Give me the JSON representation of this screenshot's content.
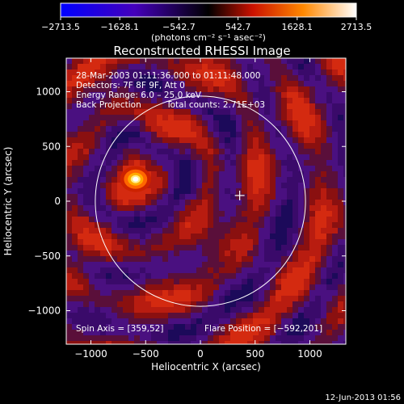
{
  "colorbar": {
    "tick_labels": [
      "−2713.5",
      "−1628.1",
      "−542.7",
      "542.7",
      "1628.1",
      "2713.5"
    ],
    "tick_values": [
      -2713.5,
      -1628.1,
      -542.7,
      542.7,
      1628.1,
      2713.5
    ],
    "range": [
      -2713.5,
      2713.5
    ],
    "unit_label": "(photons cm⁻² s⁻¹ asec⁻²)"
  },
  "footer": {
    "timestamp": "12-Jun-2013 01:56"
  },
  "chart_data": {
    "type": "heatmap",
    "title": "Reconstructed RHESSI Image",
    "xlabel": "Heliocentric X (arcsec)",
    "ylabel": "Heliocentric Y (arcsec)",
    "xlim": [
      -1300,
      1300
    ],
    "ylim": [
      -1300,
      1300
    ],
    "x_ticks": [
      -1000,
      -500,
      0,
      500,
      1000
    ],
    "y_ticks": [
      1000,
      500,
      0,
      -500,
      -1000
    ],
    "x_tick_labels": [
      "−1000",
      "−500",
      "0",
      "500",
      "1000"
    ],
    "y_tick_labels": [
      "1000",
      "500",
      "0",
      "−500",
      "−1000"
    ],
    "annotations": {
      "time_range": "28-Mar-2003 01:11:36.000 to 01:11:48.000",
      "detectors": "Detectors: 7F 8F 9F, Att 0",
      "energy_range": "Energy Range: 6.0 – 25.0 keV",
      "method": "Back Projection",
      "total_counts": "Total counts: 2.71E+03",
      "spin_axis": "Spin Axis = [359,52]",
      "flare_position": "Flare Position = [−592,201]"
    },
    "spin_axis_xy": [
      359,
      52
    ],
    "flare_xy": [
      -592,
      201
    ],
    "solar_limb_radius": 960,
    "colors": {
      "negative": "#1a1aff",
      "zero": "#000000",
      "low_positive": "#8a2be2",
      "mid": "#dd2211",
      "high": "#ffaa00",
      "max": "#ffffff"
    }
  }
}
